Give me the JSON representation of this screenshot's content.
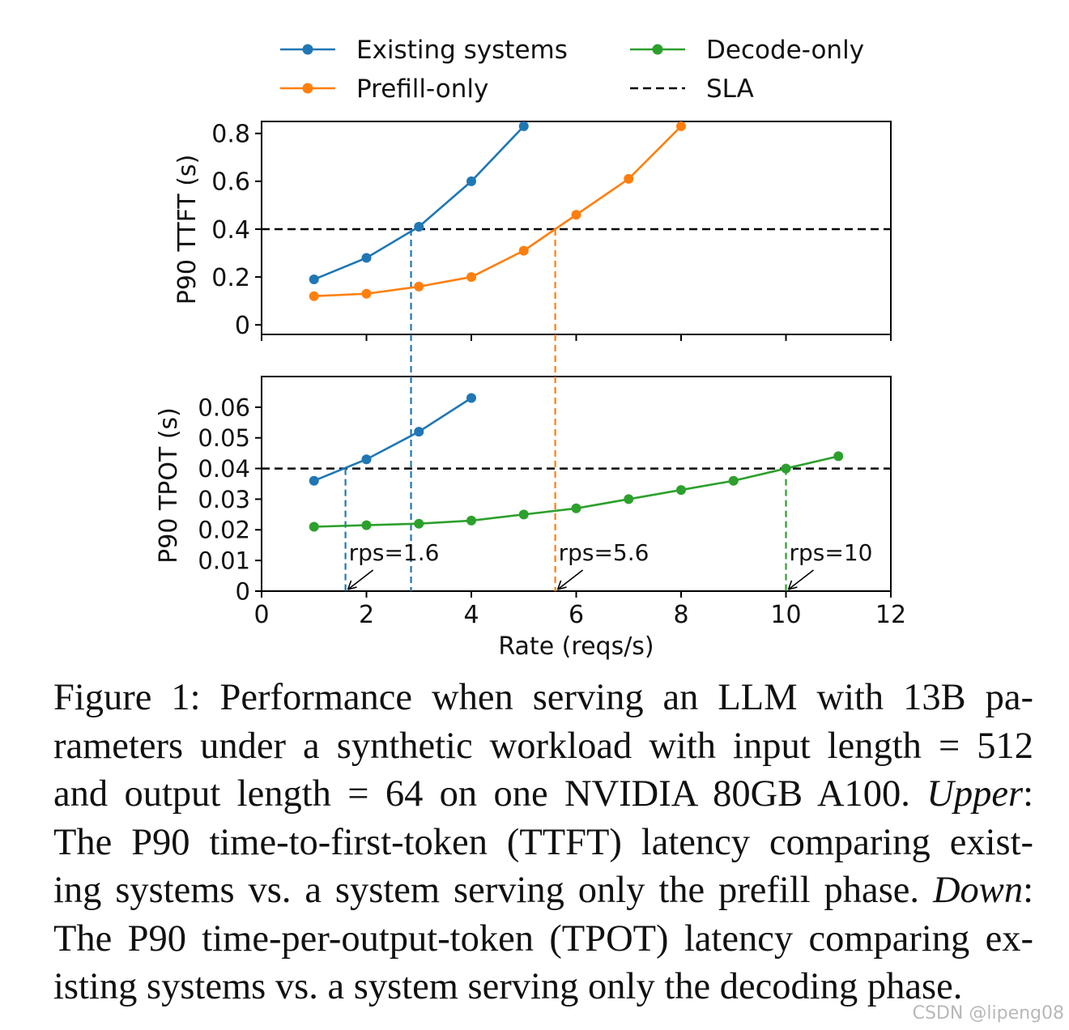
{
  "chart_data": [
    {
      "type": "line",
      "panel": "upper",
      "ylabel": "P90 TTFT (s)",
      "xlim": [
        0,
        12
      ],
      "ylim": [
        -0.04,
        0.85
      ],
      "yticks": [
        0,
        0.2,
        0.4,
        0.6,
        0.8
      ],
      "yticklabels": [
        "0",
        "0.2",
        "0.4",
        "0.6",
        "0.8"
      ],
      "sla": 0.4,
      "series": [
        {
          "name": "Existing systems",
          "color": "#1f77b4",
          "x": [
            1,
            2,
            3,
            4,
            5
          ],
          "y": [
            0.19,
            0.28,
            0.41,
            0.6,
            0.83
          ]
        },
        {
          "name": "Prefill-only",
          "color": "#ff7f0e",
          "x": [
            1,
            2,
            3,
            4,
            5,
            6,
            7,
            8
          ],
          "y": [
            0.12,
            0.13,
            0.16,
            0.2,
            0.31,
            0.46,
            0.61,
            0.83
          ]
        }
      ]
    },
    {
      "type": "line",
      "panel": "lower",
      "ylabel": "P90 TPOT (s)",
      "xlabel": "Rate (reqs/s)",
      "xlim": [
        0,
        12
      ],
      "ylim": [
        0,
        0.07
      ],
      "xticks": [
        0,
        2,
        4,
        6,
        8,
        10,
        12
      ],
      "xticklabels": [
        "0",
        "2",
        "4",
        "6",
        "8",
        "10",
        "12"
      ],
      "yticks": [
        0,
        0.01,
        0.02,
        0.03,
        0.04,
        0.05,
        0.06
      ],
      "yticklabels": [
        "0",
        "0.01",
        "0.02",
        "0.03",
        "0.04",
        "0.05",
        "0.06"
      ],
      "sla": 0.04,
      "series": [
        {
          "name": "Existing systems",
          "color": "#1f77b4",
          "x": [
            1,
            2,
            3,
            4
          ],
          "y": [
            0.036,
            0.043,
            0.052,
            0.063
          ]
        },
        {
          "name": "Decode-only",
          "color": "#2ca02c",
          "x": [
            1,
            2,
            3,
            4,
            5,
            6,
            7,
            8,
            9,
            10,
            11
          ],
          "y": [
            0.021,
            0.0215,
            0.022,
            0.023,
            0.025,
            0.027,
            0.03,
            0.033,
            0.036,
            0.04,
            0.044
          ]
        }
      ],
      "annotations": [
        {
          "text": "rps=1.6",
          "x": 1.6,
          "color": "#1f77b4"
        },
        {
          "text": "rps=5.6",
          "x": 5.6,
          "color": "#ff7f0e"
        },
        {
          "text": "rps=10",
          "x": 10,
          "color": "#2ca02c"
        }
      ],
      "cross_panel_line": {
        "x": 2.85,
        "color": "#1f77b4"
      }
    }
  ],
  "legend": [
    {
      "label": "Existing systems",
      "color": "#1f77b4",
      "style": "line-marker"
    },
    {
      "label": "Decode-only",
      "color": "#2ca02c",
      "style": "line-marker"
    },
    {
      "label": "Prefill-only",
      "color": "#ff7f0e",
      "style": "line-marker"
    },
    {
      "label": "SLA",
      "color": "#000000",
      "style": "dashed"
    }
  ],
  "caption": {
    "lines": [
      "Figure 1: Performance when serving an LLM with 13B pa-",
      "rameters under a synthetic workload with input length = 512",
      "and output length = 64 on one NVIDIA 80GB A100. ",
      "The P90 time-to-first-token (TTFT) latency comparing exist-",
      "ing systems vs. a system serving only the prefill phase. ",
      "The P90 time-per-output-token (TPOT) latency comparing ex-",
      "isting systems vs. a system serving only the decoding phase."
    ],
    "emph_upper": "Upper",
    "emph_down": "Down",
    "colon": ":"
  },
  "watermark": "CSDN @lipeng08"
}
